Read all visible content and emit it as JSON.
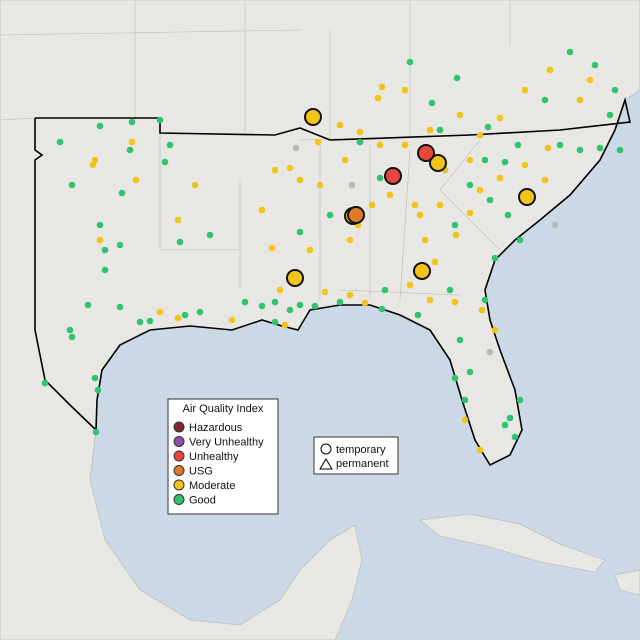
{
  "legend": {
    "title": "Air Quality Index",
    "items": [
      {
        "label": "Hazardous",
        "color": "#7e2a2a"
      },
      {
        "label": "Very Unhealthy",
        "color": "#8e4fa8"
      },
      {
        "label": "Unhealthy",
        "color": "#e8483c"
      },
      {
        "label": "USG",
        "color": "#e07a28"
      },
      {
        "label": "Moderate",
        "color": "#f2c318"
      },
      {
        "label": "Good",
        "color": "#2fc46e"
      }
    ]
  },
  "shape_legend": {
    "items": [
      "temporary",
      "permanent"
    ]
  }
}
